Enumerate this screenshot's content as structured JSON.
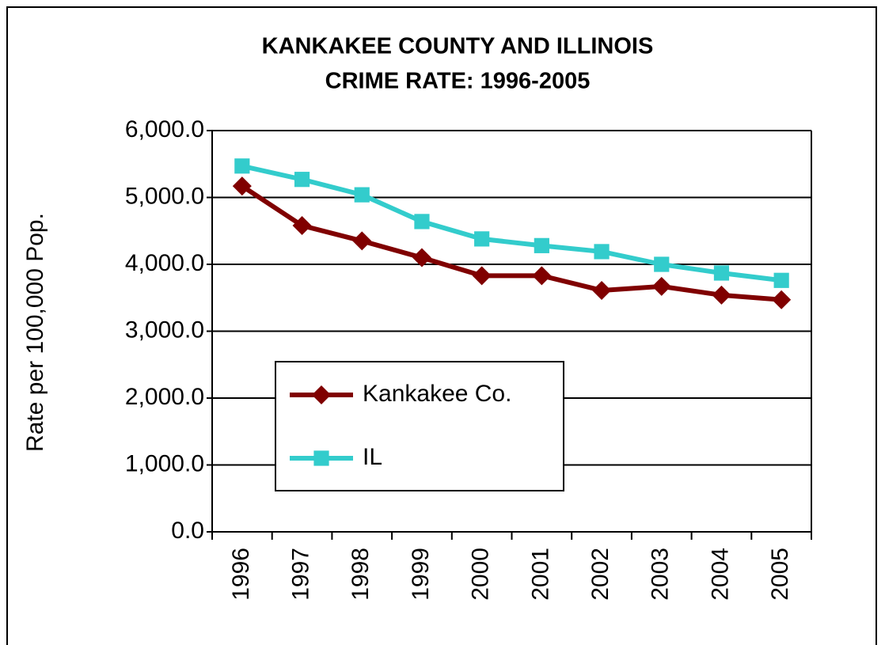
{
  "chart_data": {
    "type": "line",
    "title": [
      "KANKAKEE COUNTY AND ILLINOIS",
      "CRIME RATE:  1996-2005"
    ],
    "y_label": "Rate per 100,000 Pop.",
    "categories": [
      "1996",
      "1997",
      "1998",
      "1999",
      "2000",
      "2001",
      "2002",
      "2003",
      "2004",
      "2005"
    ],
    "series": [
      {
        "name": "Kankakee Co.",
        "color": "#800000",
        "marker": "diamond",
        "values": [
          5170,
          4580,
          4350,
          4100,
          3830,
          3830,
          3610,
          3670,
          3540,
          3470
        ]
      },
      {
        "name": "IL",
        "color": "#33cccc",
        "marker": "square",
        "values": [
          5470,
          5270,
          5040,
          4640,
          4380,
          4280,
          4190,
          4000,
          3870,
          3760
        ]
      }
    ],
    "ylim": [
      0,
      6000
    ],
    "yticks": [
      {
        "value": 0,
        "label": "0.0"
      },
      {
        "value": 1000,
        "label": "1,000.0"
      },
      {
        "value": 2000,
        "label": "2,000.0"
      },
      {
        "value": 3000,
        "label": "3,000.0"
      },
      {
        "value": 4000,
        "label": "4,000.0"
      },
      {
        "value": 5000,
        "label": "5,000.0"
      },
      {
        "value": 6000,
        "label": "6,000.0"
      }
    ],
    "grid": true,
    "legend": "center-left"
  }
}
